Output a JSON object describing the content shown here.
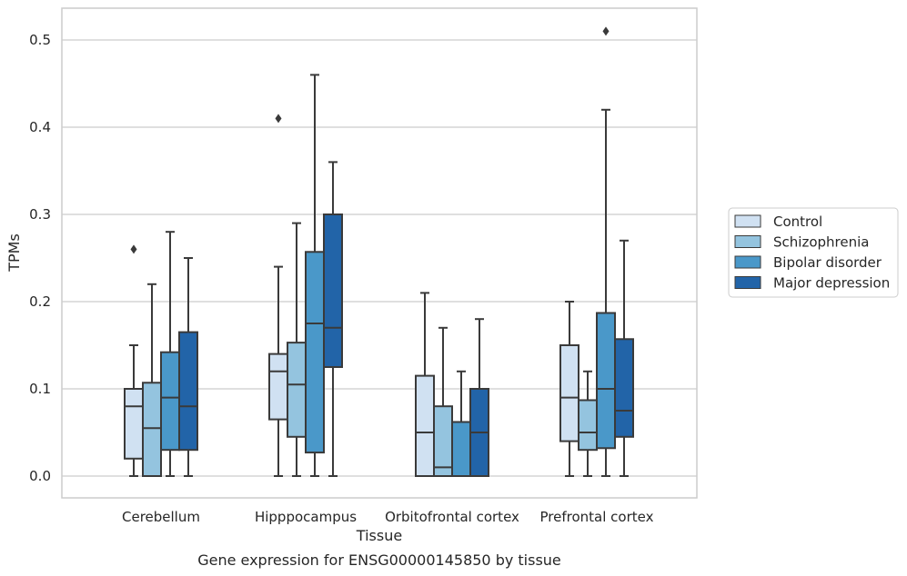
{
  "chart_data": {
    "type": "boxplot",
    "title": "",
    "caption": "Gene expression for ENSG00000145850 by tissue",
    "xlabel": "Tissue",
    "ylabel": "TPMs",
    "ylim": [
      -0.025,
      0.537
    ],
    "yticks": [
      0.0,
      0.1,
      0.2,
      0.3,
      0.4,
      0.5
    ],
    "ytick_labels": [
      "0.0",
      "0.1",
      "0.2",
      "0.3",
      "0.4",
      "0.5"
    ],
    "categories": [
      "Cerebellum",
      "Hipppocampus",
      "Orbitofrontal cortex",
      "Prefrontal cortex"
    ],
    "grid": "horizontal",
    "legend_position": "right",
    "series": [
      {
        "name": "Control",
        "color": "#d0e1f2",
        "boxes": [
          {
            "whislo": 0.0,
            "q1": 0.02,
            "med": 0.08,
            "q3": 0.1,
            "whishi": 0.15,
            "fliers": [
              0.26
            ]
          },
          {
            "whislo": 0.0,
            "q1": 0.065,
            "med": 0.12,
            "q3": 0.14,
            "whishi": 0.24,
            "fliers": [
              0.41
            ]
          },
          {
            "whislo": 0.0,
            "q1": 0.0,
            "med": 0.05,
            "q3": 0.115,
            "whishi": 0.21,
            "fliers": []
          },
          {
            "whislo": 0.0,
            "q1": 0.04,
            "med": 0.09,
            "q3": 0.15,
            "whishi": 0.2,
            "fliers": []
          }
        ]
      },
      {
        "name": "Schizophrenia",
        "color": "#94c4df",
        "boxes": [
          {
            "whislo": 0.0,
            "q1": 0.0,
            "med": 0.055,
            "q3": 0.107,
            "whishi": 0.22,
            "fliers": []
          },
          {
            "whislo": 0.0,
            "q1": 0.045,
            "med": 0.105,
            "q3": 0.153,
            "whishi": 0.29,
            "fliers": []
          },
          {
            "whislo": 0.0,
            "q1": 0.0,
            "med": 0.01,
            "q3": 0.08,
            "whishi": 0.17,
            "fliers": []
          },
          {
            "whislo": 0.0,
            "q1": 0.03,
            "med": 0.05,
            "q3": 0.087,
            "whishi": 0.12,
            "fliers": []
          }
        ]
      },
      {
        "name": "Bipolar disorder",
        "color": "#4a98c9",
        "boxes": [
          {
            "whislo": 0.0,
            "q1": 0.03,
            "med": 0.09,
            "q3": 0.142,
            "whishi": 0.28,
            "fliers": []
          },
          {
            "whislo": 0.0,
            "q1": 0.027,
            "med": 0.175,
            "q3": 0.257,
            "whishi": 0.46,
            "fliers": []
          },
          {
            "whislo": 0.0,
            "q1": 0.0,
            "med": 0.0,
            "q3": 0.062,
            "whishi": 0.12,
            "fliers": []
          },
          {
            "whislo": 0.0,
            "q1": 0.032,
            "med": 0.1,
            "q3": 0.187,
            "whishi": 0.42,
            "fliers": [
              0.51
            ]
          }
        ]
      },
      {
        "name": "Major depression",
        "color": "#2264a8",
        "boxes": [
          {
            "whislo": 0.0,
            "q1": 0.03,
            "med": 0.08,
            "q3": 0.165,
            "whishi": 0.25,
            "fliers": []
          },
          {
            "whislo": 0.0,
            "q1": 0.125,
            "med": 0.17,
            "q3": 0.3,
            "whishi": 0.36,
            "fliers": []
          },
          {
            "whislo": 0.0,
            "q1": 0.0,
            "med": 0.05,
            "q3": 0.1,
            "whishi": 0.18,
            "fliers": []
          },
          {
            "whislo": 0.0,
            "q1": 0.045,
            "med": 0.075,
            "q3": 0.157,
            "whishi": 0.27,
            "fliers": []
          }
        ]
      }
    ]
  },
  "style": {
    "grid_color": "#cccccc",
    "frame_color": "#cccccc",
    "line_color": "#3a3a3a"
  }
}
